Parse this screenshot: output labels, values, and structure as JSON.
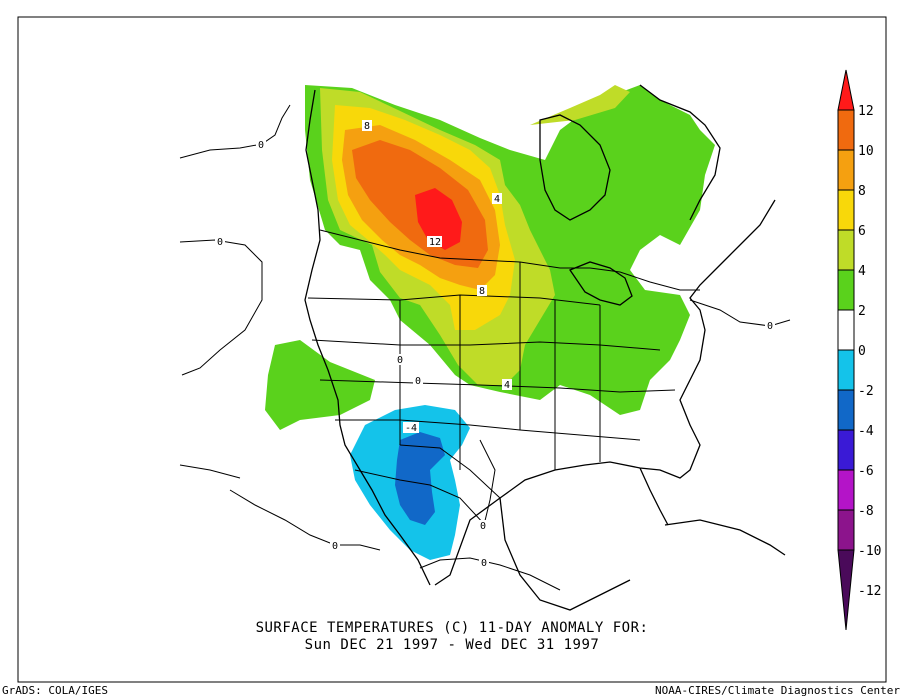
{
  "title": {
    "line1": "SURFACE TEMPERATURES (C)   11-DAY ANOMALY FOR:",
    "line2": "Sun DEC 21 1997 - Wed DEC 31 1997"
  },
  "footer": {
    "left": "GrADS: COLA/IGES",
    "right": "NOAA-CIRES/Climate Diagnostics Center"
  },
  "colorbar": {
    "ticks": [
      "12",
      "10",
      "8",
      "6",
      "4",
      "2",
      "0",
      "-2",
      "-4",
      "-6",
      "-8",
      "-10",
      "-12"
    ],
    "colors": {
      "gt12": "#ff1a1a",
      "10_12": "#f06a0f",
      "8_10": "#f5a010",
      "6_8": "#f8d80a",
      "4_6": "#bfdc28",
      "2_4": "#5ad21c",
      "m2_2": "#ffffff",
      "m4_m2": "#14c3ea",
      "m6_m4": "#1168c8",
      "m8_m6": "#3a1ad6",
      "m10_m8": "#b414c8",
      "m12_m10": "#8c148c",
      "lt_m12": "#4a0a5a"
    }
  },
  "contour_labels": [
    "0",
    "0",
    "8",
    "4",
    "12",
    "8",
    "0",
    "0",
    "4",
    "-4",
    "0",
    "0",
    "0",
    "0"
  ]
}
